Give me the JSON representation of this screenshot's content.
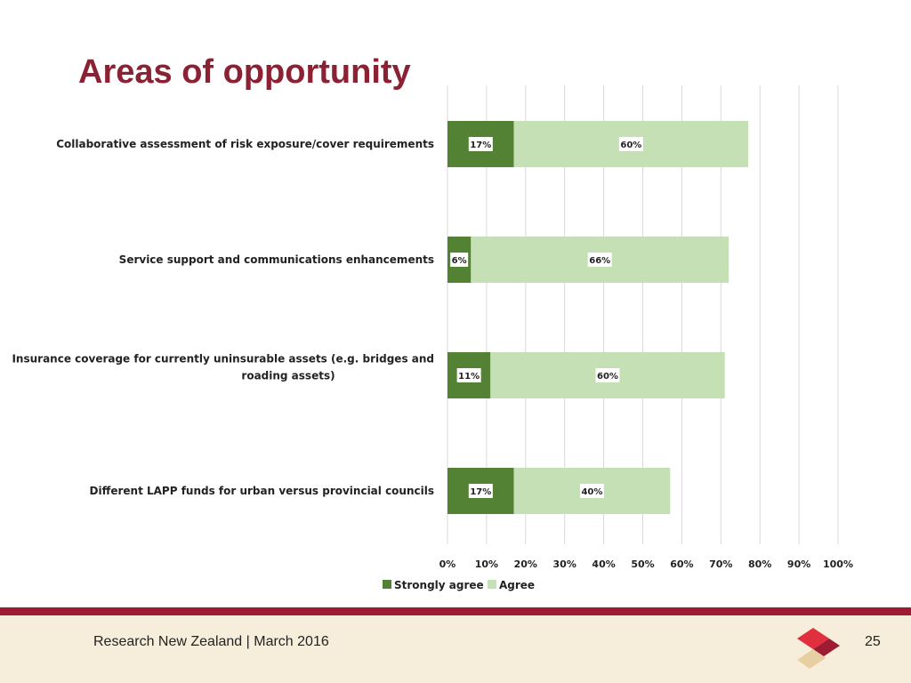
{
  "slide": {
    "title": "Areas of opportunity",
    "footer_text": "Research New Zealand  |  March 2016",
    "page_number": "25"
  },
  "colors": {
    "title": "#8b2233",
    "strongly_agree": "#548235",
    "agree": "#c5e0b4",
    "footer_bar": "#9e1b34",
    "footer_bg": "#f6eedb"
  },
  "icons": {
    "logo": "research-nz-diamond-logo"
  },
  "chart_data": {
    "type": "bar",
    "orientation": "horizontal",
    "stacked": true,
    "categories": [
      [
        "Collaborative assessment of risk exposure/cover requirements"
      ],
      [
        "Service support and communications enhancements"
      ],
      [
        "Insurance coverage for currently uninsurable assets (e.g. bridges and",
        "roading assets)"
      ],
      [
        "Different LAPP funds for urban versus provincial councils"
      ]
    ],
    "series": [
      {
        "name": "Strongly agree",
        "values": [
          17,
          6,
          11,
          17
        ],
        "labels": [
          "17%",
          "6%",
          "11%",
          "17%"
        ]
      },
      {
        "name": "Agree",
        "values": [
          60,
          66,
          60,
          40
        ],
        "labels": [
          "60%",
          "66%",
          "60%",
          "40%"
        ]
      }
    ],
    "xlim": [
      0,
      100
    ],
    "xticks": [
      "0%",
      "10%",
      "20%",
      "30%",
      "40%",
      "50%",
      "60%",
      "70%",
      "80%",
      "90%",
      "100%"
    ],
    "grid": true,
    "legend_position": "bottom"
  }
}
